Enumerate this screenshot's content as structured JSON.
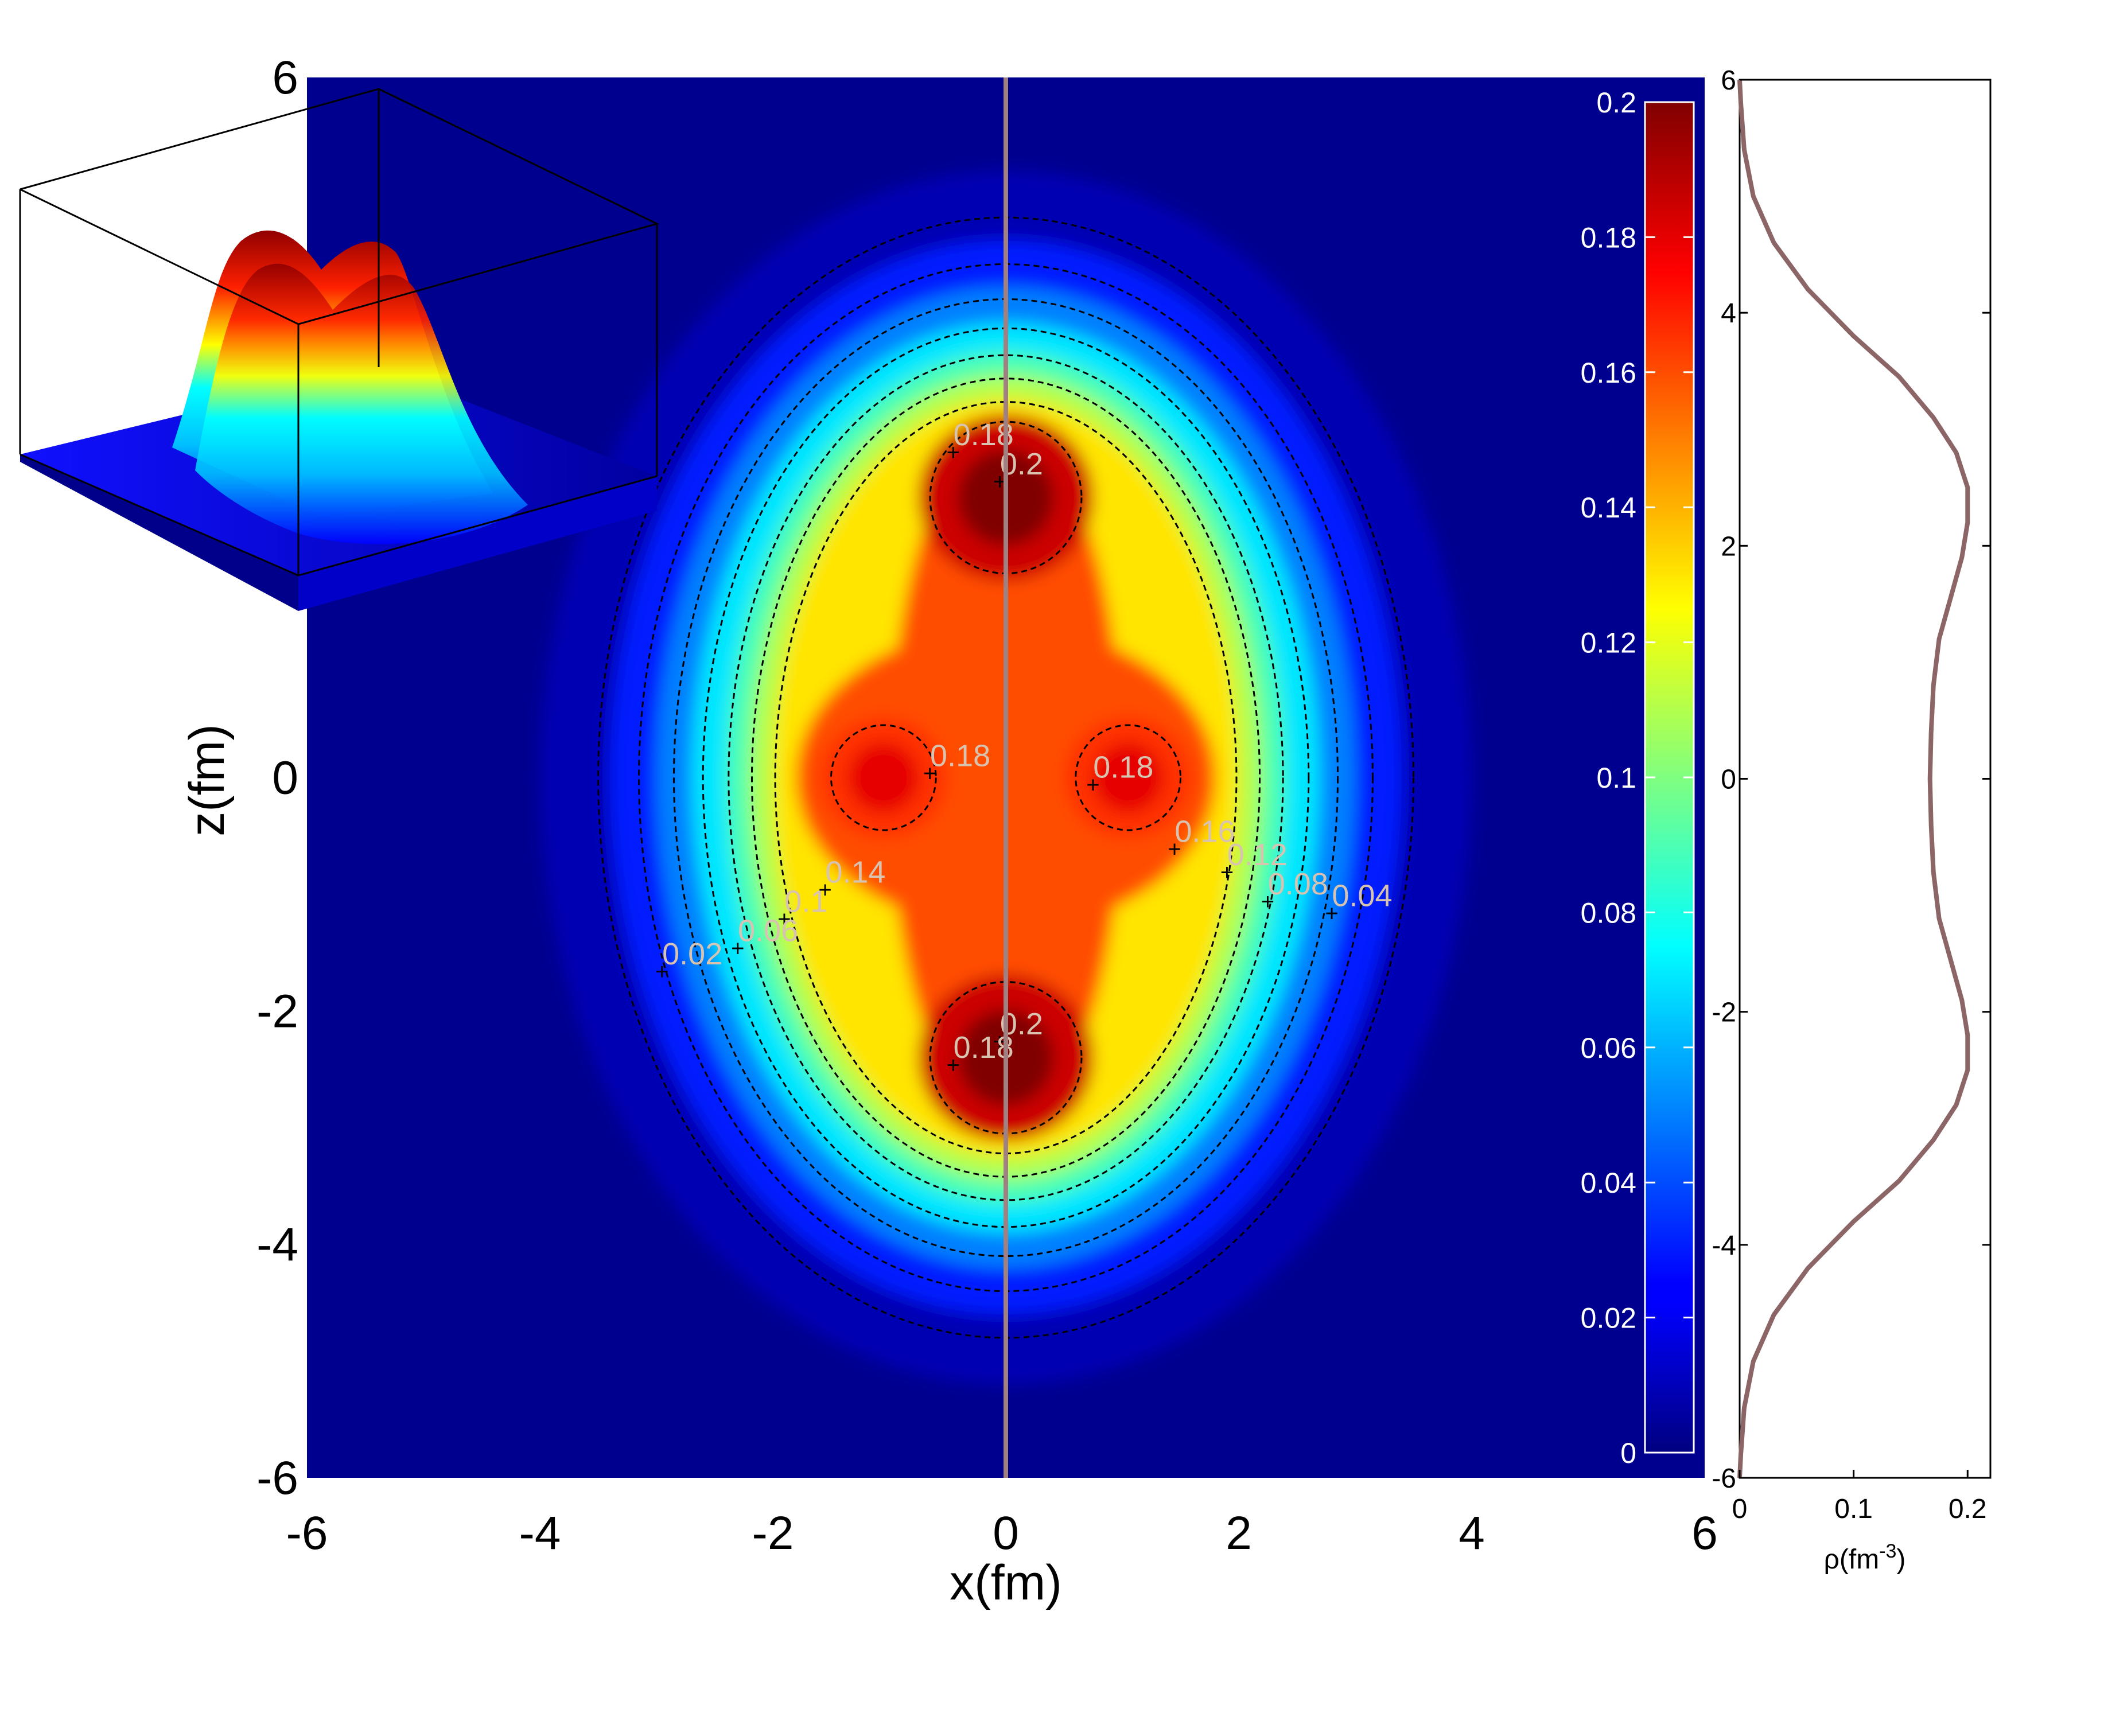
{
  "chart_data": [
    {
      "type": "heatmap",
      "title": "",
      "xlabel": "x(fm)",
      "ylabel": "z(fm)",
      "xlim": [
        -6,
        6
      ],
      "ylim": [
        -6,
        6
      ],
      "xticks": [
        "-6",
        "-4",
        "-2",
        "0",
        "2",
        "4",
        "6"
      ],
      "yticks": [
        "6",
        "4",
        "2",
        "0",
        "-2",
        "-4",
        "-6"
      ],
      "colormap": "jet",
      "clim": [
        0,
        0.2
      ],
      "colorbar_ticks": [
        "0.2",
        "0.18",
        "0.16",
        "0.14",
        "0.12",
        "0.1",
        "0.08",
        "0.06",
        "0.04",
        "0.02",
        "0"
      ],
      "density_centers": [
        {
          "x": 0,
          "z": 2.4,
          "peak": 0.2
        },
        {
          "x": 0,
          "z": -2.4,
          "peak": 0.2
        },
        {
          "x": -1.05,
          "z": 0,
          "peak": 0.18
        },
        {
          "x": 1.05,
          "z": 0,
          "peak": 0.18
        }
      ],
      "contour_levels": [
        0.02,
        0.04,
        0.06,
        0.08,
        0.1,
        0.12,
        0.14,
        0.16,
        0.18,
        0.2
      ],
      "contour_labels": [
        {
          "text": "0.18",
          "x": -0.45,
          "z": 2.8
        },
        {
          "text": "0.2",
          "x": -0.05,
          "z": 2.55
        },
        {
          "text": "0.18",
          "x": -0.65,
          "z": 0.05
        },
        {
          "text": "0.18",
          "x": 0.75,
          "z": -0.05
        },
        {
          "text": "0.16",
          "x": 1.45,
          "z": -0.6
        },
        {
          "text": "0.12",
          "x": 1.9,
          "z": -0.8
        },
        {
          "text": "0.08",
          "x": 2.25,
          "z": -1.05
        },
        {
          "text": "0.04",
          "x": 2.8,
          "z": -1.15
        },
        {
          "text": "0.14",
          "x": -1.55,
          "z": -0.95
        },
        {
          "text": "0.1",
          "x": -1.9,
          "z": -1.2
        },
        {
          "text": "0.06",
          "x": -2.3,
          "z": -1.45
        },
        {
          "text": "0.02",
          "x": -2.95,
          "z": -1.65
        },
        {
          "text": "0.2",
          "x": -0.05,
          "z": -2.25
        },
        {
          "text": "0.18",
          "x": -0.45,
          "z": -2.45
        }
      ]
    },
    {
      "type": "line",
      "title": "",
      "xlabel": "ρ(fm",
      "xlabel_sup": "-3",
      "xlabel_end": ")",
      "ylabel": "",
      "xlim": [
        0,
        0.22
      ],
      "ylim": [
        -6,
        6
      ],
      "xticks": [
        "0",
        "0.1",
        "0.2"
      ],
      "yticks": [
        "6",
        "4",
        "2",
        "0",
        "-2",
        "-4",
        "-6"
      ],
      "line_color": "#8c6566",
      "x": [
        0.0,
        0.001,
        0.004,
        0.012,
        0.03,
        0.06,
        0.1,
        0.14,
        0.17,
        0.19,
        0.2,
        0.2,
        0.195,
        0.185,
        0.175,
        0.17,
        0.168,
        0.167,
        0.168,
        0.17,
        0.175,
        0.185,
        0.195,
        0.2,
        0.2,
        0.19,
        0.17,
        0.14,
        0.1,
        0.06,
        0.03,
        0.012,
        0.004,
        0.001,
        0.0
      ],
      "y": [
        6.0,
        5.8,
        5.4,
        5.0,
        4.6,
        4.2,
        3.8,
        3.45,
        3.1,
        2.8,
        2.5,
        2.2,
        1.9,
        1.55,
        1.2,
        0.8,
        0.4,
        0.0,
        -0.4,
        -0.8,
        -1.2,
        -1.55,
        -1.9,
        -2.2,
        -2.5,
        -2.8,
        -3.1,
        -3.45,
        -3.8,
        -4.2,
        -4.6,
        -5.0,
        -5.4,
        -5.8,
        -6.0
      ]
    }
  ]
}
